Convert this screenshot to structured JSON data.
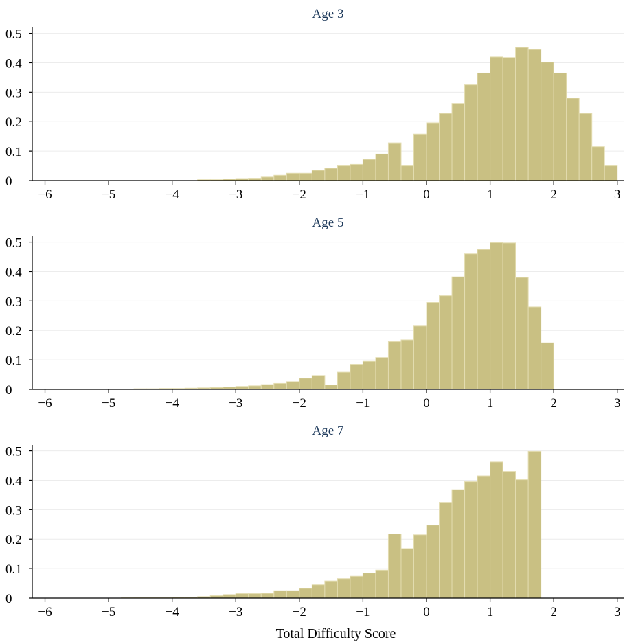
{
  "chart_data": {
    "type": "bar",
    "xlabel": "Total Difficulty Score",
    "xlim": [
      -6.2,
      3.1
    ],
    "ylim": [
      0,
      0.52
    ],
    "xticks": [
      -6,
      -5,
      -4,
      -3,
      -2,
      -1,
      0,
      1,
      2,
      3
    ],
    "xtick_labels": [
      "−6",
      "−5",
      "−4",
      "−3",
      "−2",
      "−1",
      "0",
      "1",
      "2",
      "3"
    ],
    "yticks": [
      0,
      0.1,
      0.2,
      0.3,
      0.4,
      0.5
    ],
    "ytick_labels": [
      "0",
      "0.1",
      "0.2",
      "0.3",
      "0.4",
      "0.5"
    ],
    "grid": true,
    "bar_color": "#c9c083",
    "bin_width": 0.2,
    "panels": [
      {
        "title": "Age 3",
        "bin_start": -6.0,
        "values": [
          0,
          0,
          0,
          0,
          0,
          0,
          0,
          0,
          0,
          0,
          0,
          0,
          0.003,
          0.003,
          0.005,
          0.007,
          0.008,
          0.012,
          0.018,
          0.025,
          0.025,
          0.035,
          0.042,
          0.05,
          0.055,
          0.072,
          0.09,
          0.128,
          0.05,
          0.158,
          0.196,
          0.228,
          0.262,
          0.325,
          0.365,
          0.42,
          0.418,
          0.452,
          0.445,
          0.402,
          0.365,
          0.28,
          0.228,
          0.115,
          0.05,
          0,
          0,
          0,
          0
        ]
      },
      {
        "title": "Age 5",
        "bin_start": -6.0,
        "values": [
          0,
          0,
          0,
          0,
          0,
          0,
          0.001,
          0.002,
          0.002,
          0.003,
          0.003,
          0.004,
          0.005,
          0.006,
          0.008,
          0.01,
          0.012,
          0.016,
          0.02,
          0.026,
          0.038,
          0.047,
          0.015,
          0.058,
          0.085,
          0.095,
          0.108,
          0.162,
          0.168,
          0.215,
          0.295,
          0.318,
          0.382,
          0.46,
          0.475,
          0.498,
          0.497,
          0.38,
          0.28,
          0.158,
          0,
          0,
          0,
          0,
          0,
          0,
          0,
          0,
          0
        ]
      },
      {
        "title": "Age 7",
        "bin_start": -6.0,
        "values": [
          0,
          0,
          0,
          0,
          0,
          0,
          0.001,
          0.002,
          0.002,
          0.002,
          0.003,
          0.003,
          0.005,
          0.008,
          0.012,
          0.015,
          0.015,
          0.016,
          0.025,
          0.025,
          0.033,
          0.045,
          0.058,
          0.066,
          0.074,
          0.085,
          0.095,
          0.218,
          0.168,
          0.215,
          0.248,
          0.325,
          0.368,
          0.395,
          0.415,
          0.462,
          0.43,
          0.402,
          0.498,
          0,
          0,
          0,
          0,
          0,
          0,
          0,
          0,
          0,
          0
        ]
      }
    ]
  }
}
